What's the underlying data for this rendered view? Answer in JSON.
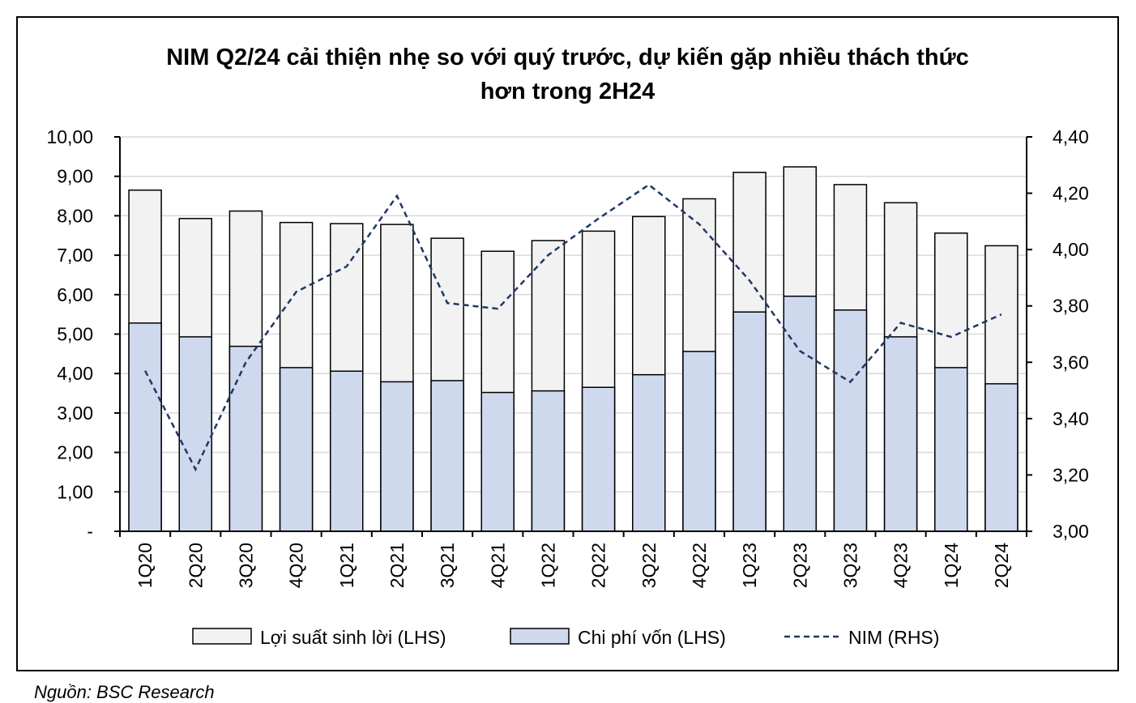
{
  "chart_data": {
    "type": "bar",
    "title_line1": "NIM Q2/24 cải thiện nhẹ so với quý trước, dự kiến gặp nhiều thách thức",
    "title_line2": "hơn trong 2H24",
    "categories": [
      "1Q20",
      "2Q20",
      "3Q20",
      "4Q20",
      "1Q21",
      "2Q21",
      "3Q21",
      "4Q21",
      "1Q22",
      "2Q22",
      "3Q22",
      "4Q22",
      "1Q23",
      "2Q23",
      "3Q23",
      "4Q23",
      "1Q24",
      "2Q24"
    ],
    "series": [
      {
        "name": "Lợi suất sinh lời (LHS)",
        "axis": "left",
        "kind": "bar",
        "color": "#f2f2f2",
        "values": [
          8.65,
          7.93,
          8.12,
          7.83,
          7.8,
          7.78,
          7.43,
          7.1,
          7.37,
          7.61,
          7.98,
          8.43,
          9.1,
          9.24,
          8.79,
          8.33,
          7.56,
          7.24
        ]
      },
      {
        "name": "Chi phí vốn (LHS)",
        "axis": "left",
        "kind": "bar",
        "color": "#cfd9ee",
        "values": [
          5.28,
          4.93,
          4.69,
          4.15,
          4.06,
          3.79,
          3.82,
          3.52,
          3.56,
          3.65,
          3.97,
          4.56,
          5.56,
          5.96,
          5.61,
          4.93,
          4.15,
          3.74
        ]
      },
      {
        "name": "NIM (RHS)",
        "axis": "right",
        "kind": "line",
        "color": "#1f3864",
        "values": [
          3.57,
          3.22,
          3.6,
          3.85,
          3.94,
          4.19,
          3.81,
          3.79,
          3.98,
          4.11,
          4.23,
          4.09,
          3.89,
          3.64,
          3.53,
          3.74,
          3.69,
          3.77
        ]
      }
    ],
    "y_left": {
      "min": 0,
      "max": 10,
      "step": 1,
      "tick_labels": [
        "-",
        "1,00",
        "2,00",
        "3,00",
        "4,00",
        "5,00",
        "6,00",
        "7,00",
        "8,00",
        "9,00",
        "10,00"
      ]
    },
    "y_right": {
      "min": 3.0,
      "max": 4.4,
      "step": 0.2,
      "tick_labels": [
        "3,00",
        "3,20",
        "3,40",
        "3,60",
        "3,80",
        "4,00",
        "4,20",
        "4,40"
      ]
    },
    "grid": true,
    "legend_position": "bottom"
  },
  "source_note": "Nguồn: BSC Research",
  "colors": {
    "bar_edge": "#000000",
    "grid": "#d9d9d9",
    "axis": "#000000"
  }
}
